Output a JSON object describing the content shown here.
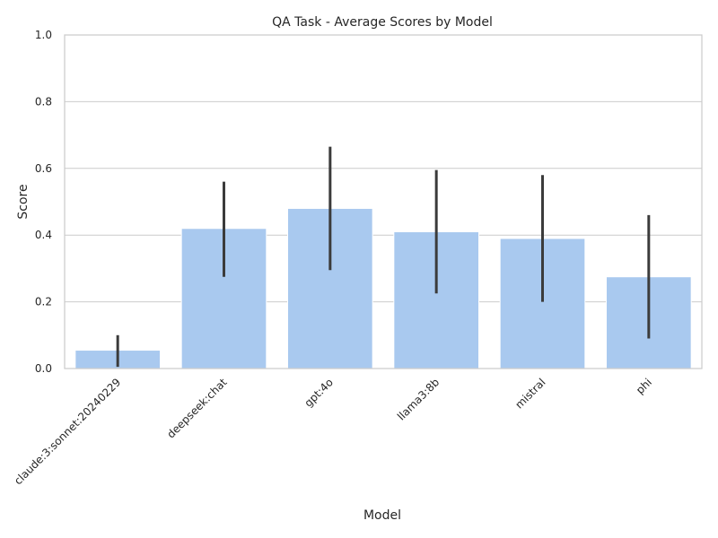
{
  "chart_data": {
    "type": "bar",
    "title": "QA Task - Average Scores by Model",
    "xlabel": "Model",
    "ylabel": "Score",
    "ylim": [
      0,
      1
    ],
    "yticks": [
      "0.0",
      "0.2",
      "0.4",
      "0.6",
      "0.8",
      "1.0"
    ],
    "grid": "horizontal",
    "categories": [
      "claude:3:sonnet:20240229",
      "deepseek:chat",
      "gpt:4o",
      "llama3:8b",
      "mistral",
      "phi"
    ],
    "values": [
      0.055,
      0.42,
      0.48,
      0.41,
      0.39,
      0.275
    ],
    "error_low": [
      0.005,
      0.275,
      0.295,
      0.225,
      0.2,
      0.09
    ],
    "error_high": [
      0.1,
      0.56,
      0.665,
      0.595,
      0.58,
      0.46
    ],
    "bar_color": "#a9c9ef",
    "error_color": "#3b3b3b"
  }
}
